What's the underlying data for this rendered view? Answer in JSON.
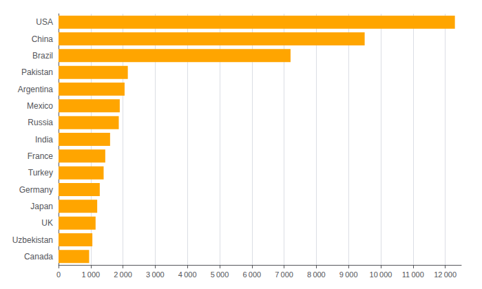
{
  "chart_data": {
    "type": "bar",
    "orientation": "horizontal",
    "categories": [
      "USA",
      "China",
      "Brazil",
      "Pakistan",
      "Argentina",
      "Mexico",
      "Russia",
      "India",
      "France",
      "Turkey",
      "Germany",
      "Japan",
      "UK",
      "Uzbekistan",
      "Canada"
    ],
    "values": [
      12300,
      9500,
      7200,
      2150,
      2050,
      1900,
      1870,
      1600,
      1450,
      1400,
      1280,
      1200,
      1150,
      1050,
      950
    ],
    "color": "#FFA500",
    "xlim": [
      0,
      12500
    ],
    "xticks": [
      0,
      {
        "value": 1000,
        "label": "1 000"
      },
      {
        "value": 2000,
        "label": "2 000"
      },
      {
        "value": 3000,
        "label": "3 000"
      },
      {
        "value": 4000,
        "label": "4 000"
      },
      {
        "value": 5000,
        "label": "5 000"
      },
      {
        "value": 6000,
        "label": "6 000"
      },
      {
        "value": 7000,
        "label": "7 000"
      },
      {
        "value": 8000,
        "label": "8 000"
      },
      {
        "value": 9000,
        "label": "9 000"
      },
      {
        "value": 10000,
        "label": "10 000"
      },
      {
        "value": 11000,
        "label": "11 000"
      },
      {
        "value": 12000,
        "label": "12 000"
      }
    ],
    "grid": true
  }
}
